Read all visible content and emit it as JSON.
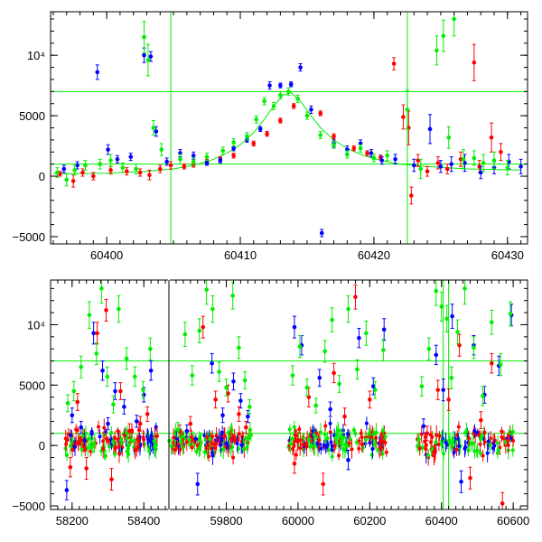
{
  "chart_data": [
    {
      "type": "scatter",
      "title": "",
      "xlabel": "",
      "ylabel": "",
      "xlim": [
        60395.8,
        60431.5
      ],
      "ylim": [
        -5600,
        13600
      ],
      "x_ticks": [
        60400,
        60410,
        60420,
        60430
      ],
      "x_tick_labels": [
        "60400",
        "60410",
        "60420",
        "60430"
      ],
      "y_ticks": [
        -5000,
        0,
        5000,
        10000
      ],
      "y_tick_labels": [
        "−5000",
        "0",
        "5000",
        "10⁴"
      ],
      "grid": false,
      "hlines": [
        7000,
        1000
      ],
      "vlines": [
        60404.8,
        60422.5
      ],
      "colors": {
        "series_a": "#ff0000",
        "series_b": "#0000ff",
        "series_c": "#00ee00",
        "model": "#00ee00",
        "frame": "#000000"
      },
      "model_curve": {
        "x": [
          60396,
          60400,
          60403,
          60405,
          60406,
          60407,
          60408,
          60409,
          60410,
          60411,
          60411.8,
          60412.5,
          60413.2,
          60413.8,
          60414.5,
          60415.3,
          60416,
          60417,
          60418,
          60419,
          60420,
          60421,
          60422,
          60424,
          60427,
          60431
        ],
        "y": [
          200,
          250,
          400,
          600,
          800,
          1050,
          1400,
          1900,
          2600,
          3600,
          4700,
          5800,
          6700,
          6900,
          6200,
          5000,
          4000,
          3000,
          2300,
          1800,
          1450,
          1200,
          1000,
          800,
          600,
          500
        ]
      },
      "series": [
        {
          "color": "series_a",
          "x": [
            60396.5,
            60397.5,
            60398.2,
            60399,
            60400.3,
            60401.5,
            60402.5,
            60403.2,
            60404,
            60404.8,
            60405.8,
            60406.5,
            60407.5,
            60408.5,
            60409.5,
            60411,
            60412,
            60413,
            60414,
            60416,
            60417,
            60418.5,
            60419.5,
            60420.5,
            60421.5,
            60422.2,
            60422.6,
            60422.8,
            60423.3,
            60424,
            60424.8,
            60425.5,
            60426.5,
            60427.5,
            60427.9,
            60428.8,
            60429.5
          ],
          "y": [
            200,
            -400,
            300,
            0,
            500,
            400,
            300,
            100,
            600,
            900,
            800,
            950,
            1200,
            1400,
            1700,
            2700,
            3500,
            4600,
            5800,
            5200,
            3300,
            2300,
            1900,
            1550,
            9300,
            4900,
            4000,
            -1600,
            1300,
            400,
            1100,
            600,
            1400,
            9400,
            800,
            3200,
            2000
          ],
          "yerr": [
            200,
            500,
            300,
            300,
            300,
            300,
            300,
            400,
            300,
            300,
            200,
            200,
            200,
            200,
            200,
            200,
            200,
            200,
            200,
            200,
            200,
            200,
            200,
            200,
            500,
            1000,
            1400,
            700,
            500,
            400,
            500,
            400,
            600,
            1500,
            500,
            1200,
            700
          ]
        },
        {
          "color": "series_b",
          "x": [
            60396.8,
            60397.8,
            60399.3,
            60400.1,
            60400.8,
            60401.8,
            60402.8,
            60403.3,
            60403.7,
            60404.5,
            60405.5,
            60406.5,
            60407.5,
            60408.5,
            60409.5,
            60410.5,
            60411.5,
            60412.2,
            60413,
            60413.8,
            60414.5,
            60415.3,
            60416.1,
            60417,
            60418,
            60419,
            60419.8,
            60420.6,
            60421.6,
            60423,
            60424.2,
            60425,
            60425.8,
            60426.8,
            60428,
            60429,
            60430.1,
            60431
          ],
          "y": [
            600,
            900,
            8600,
            2200,
            1400,
            1600,
            10000,
            9900,
            3700,
            1200,
            1900,
            1700,
            1100,
            1300,
            2300,
            3000,
            3900,
            7500,
            7500,
            7600,
            9000,
            5500,
            -4700,
            2700,
            2200,
            2700,
            1900,
            1300,
            1400,
            900,
            3900,
            800,
            1000,
            1100,
            300,
            700,
            1200,
            800
          ],
          "yerr": [
            300,
            300,
            600,
            400,
            300,
            300,
            600,
            400,
            400,
            300,
            300,
            300,
            200,
            200,
            200,
            200,
            200,
            300,
            200,
            200,
            300,
            300,
            300,
            300,
            300,
            300,
            300,
            300,
            400,
            500,
            1200,
            500,
            600,
            700,
            500,
            500,
            600,
            600
          ]
        },
        {
          "color": "series_c",
          "x": [
            60396.3,
            60397,
            60397.6,
            60398.4,
            60399.5,
            60400.3,
            60401.2,
            60402.2,
            60402.8,
            60403.1,
            60403.5,
            60404.1,
            60405.5,
            60406.5,
            60407.5,
            60408.7,
            60409.5,
            60410.5,
            60411.2,
            60411.8,
            60412.5,
            60413,
            60413.6,
            60414.3,
            60415,
            60416,
            60417,
            60418,
            60419,
            60420,
            60421,
            60422.5,
            60423.5,
            60424.7,
            60425.2,
            60425.6,
            60426,
            60426.7,
            60427.5,
            60428.2,
            60429,
            60430
          ],
          "y": [
            300,
            -300,
            500,
            900,
            1000,
            1300,
            700,
            600,
            11500,
            9600,
            4000,
            2200,
            1400,
            1200,
            1600,
            2100,
            2800,
            3300,
            4700,
            6200,
            5800,
            6700,
            7000,
            6400,
            5000,
            3400,
            2600,
            1800,
            2300,
            1500,
            1700,
            5500,
            600,
            10400,
            11600,
            3200,
            13000,
            1400,
            1500,
            1100,
            1300,
            700
          ],
          "yerr": [
            400,
            500,
            400,
            400,
            400,
            500,
            400,
            400,
            1300,
            1300,
            600,
            500,
            400,
            300,
            300,
            300,
            300,
            300,
            300,
            300,
            300,
            300,
            300,
            300,
            300,
            300,
            300,
            300,
            300,
            300,
            400,
            1600,
            800,
            1200,
            1300,
            900,
            1400,
            800,
            600,
            700,
            700,
            600
          ]
        }
      ]
    },
    {
      "type": "scatter",
      "title": "",
      "xlabel": "",
      "ylabel": "",
      "xlim": [
        58140,
        60640
      ],
      "ylim": [
        -5300,
        13700
      ],
      "axis_break": [
        58470,
        59640
      ],
      "x_ticks": [
        58200,
        58400,
        59800,
        60000,
        60200,
        60400,
        60600
      ],
      "x_tick_labels": [
        "58200",
        "58400",
        "59800",
        "60000",
        "60200",
        "60400",
        "60600"
      ],
      "y_ticks": [
        -5000,
        0,
        5000,
        10000
      ],
      "y_tick_labels": [
        "−5000",
        "0",
        "5000",
        "10⁴"
      ],
      "grid": false,
      "hlines": [
        7000,
        1000
      ],
      "vlines": [
        60405,
        60420
      ],
      "seasons": [
        [
          58180,
          58440
        ],
        [
          59640,
          59870
        ],
        [
          59970,
          60250
        ],
        [
          60330,
          60600
        ]
      ],
      "colors": {
        "series_a": "#ff0000",
        "series_b": "#0000ff",
        "series_c": "#00ee00",
        "frame": "#000000"
      },
      "series": [
        {
          "color": "series_b",
          "x": [
            58185,
            58200,
            58225,
            58260,
            58285,
            58300,
            58320,
            58345,
            58380,
            58400,
            58420,
            59690,
            59720,
            59760,
            59790,
            59820,
            59840,
            59860,
            59990,
            60010,
            60060,
            60090,
            60140,
            60170,
            60210,
            60240,
            60350,
            60385,
            60405,
            60430,
            60455,
            60490,
            60520,
            60560,
            60595
          ],
          "y": [
            -3700,
            2500,
            1500,
            9300,
            6200,
            1800,
            4500,
            3200,
            2000,
            4200,
            6200,
            1200,
            -3200,
            6800,
            2500,
            5300,
            3700,
            2400,
            9800,
            8300,
            5600,
            3000,
            -1200,
            8900,
            4900,
            9600,
            1600,
            7500,
            4600,
            10700,
            -3000,
            8300,
            4200,
            6600,
            10800
          ],
          "yerr": [
            800,
            600,
            500,
            900,
            800,
            500,
            700,
            600,
            500,
            600,
            800,
            500,
            900,
            800,
            600,
            700,
            600,
            500,
            900,
            800,
            700,
            600,
            800,
            800,
            700,
            900,
            600,
            800,
            900,
            1000,
            900,
            800,
            700,
            800,
            900
          ]
        },
        {
          "color": "series_a",
          "x": [
            58195,
            58215,
            58240,
            58270,
            58295,
            58310,
            58335,
            58360,
            58390,
            58410,
            59670,
            59700,
            59735,
            59770,
            59805,
            59835,
            59855,
            59990,
            60030,
            60070,
            60100,
            60130,
            60160,
            60200,
            60230,
            60360,
            60390,
            60420,
            60450,
            60480,
            60510,
            60540,
            60570
          ],
          "y": [
            -1800,
            3600,
            -1900,
            9300,
            11200,
            -2800,
            4500,
            1200,
            1800,
            2600,
            1200,
            1800,
            9800,
            3800,
            4300,
            2600,
            1500,
            -1500,
            4000,
            -3200,
            6000,
            2400,
            12300,
            3800,
            -200,
            1000,
            4600,
            3800,
            8300,
            -2700,
            2100,
            6800,
            -4800
          ],
          "yerr": [
            800,
            700,
            900,
            900,
            900,
            900,
            700,
            600,
            600,
            600,
            500,
            600,
            900,
            700,
            700,
            600,
            500,
            800,
            800,
            900,
            800,
            700,
            1000,
            700,
            600,
            600,
            800,
            900,
            900,
            900,
            700,
            800,
            900
          ]
        },
        {
          "color": "series_c",
          "x": [
            58188,
            58205,
            58225,
            58248,
            58268,
            58282,
            58298,
            58315,
            58330,
            58352,
            58375,
            58398,
            58418,
            59665,
            59685,
            59705,
            59725,
            59745,
            59762,
            59780,
            59800,
            59818,
            59835,
            59852,
            59865,
            59985,
            60005,
            60025,
            60050,
            60075,
            60095,
            60115,
            60140,
            60165,
            60190,
            60215,
            60238,
            60345,
            60365,
            60385,
            60400,
            60415,
            60428,
            60445,
            60465,
            60490,
            60515,
            60540,
            60565,
            60592
          ],
          "y": [
            3500,
            4500,
            6500,
            10800,
            7600,
            13000,
            5700,
            3400,
            11300,
            7200,
            5700,
            4600,
            8000,
            1300,
            9200,
            5800,
            9500,
            12900,
            11300,
            6100,
            4800,
            12400,
            8100,
            5400,
            3200,
            5800,
            8200,
            4800,
            3300,
            7800,
            10400,
            5100,
            11300,
            6300,
            9300,
            4600,
            7900,
            4900,
            8000,
            12800,
            11500,
            10500,
            5600,
            9400,
            13000,
            8100,
            4100,
            10200,
            6700,
            10900
          ],
          "yerr": [
            700,
            800,
            900,
            1100,
            900,
            1200,
            800,
            700,
            1100,
            900,
            800,
            700,
            900,
            600,
            1000,
            800,
            1000,
            1200,
            1100,
            800,
            700,
            1100,
            900,
            700,
            600,
            800,
            900,
            700,
            600,
            900,
            1000,
            700,
            1100,
            800,
            1000,
            700,
            900,
            800,
            900,
            1200,
            1200,
            1100,
            900,
            1000,
            1300,
            900,
            800,
            1000,
            900,
            1000
          ]
        }
      ],
      "dense_bands": {
        "note_free": true,
        "count_per_season": [
          150,
          130,
          150,
          120
        ],
        "value_center": 300,
        "value_spread": 900
      }
    }
  ]
}
